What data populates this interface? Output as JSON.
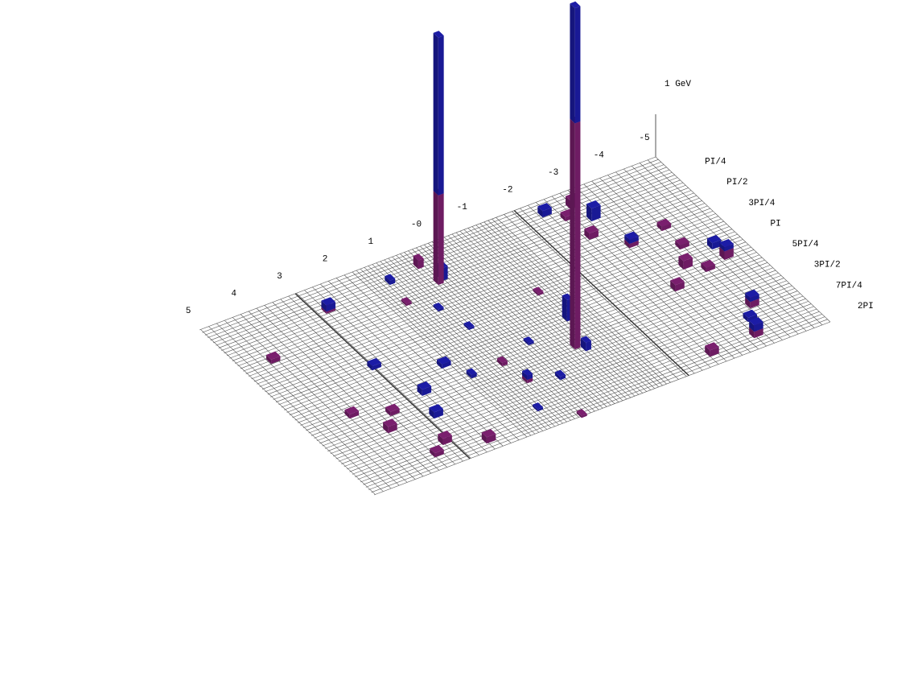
{
  "chart_data": {
    "type": "lego",
    "xlim": [
      -5,
      5
    ],
    "xticks": [
      5,
      4,
      3,
      2,
      1,
      {
        "value": 0,
        "label": "-0"
      },
      -1,
      -2,
      -3,
      -4,
      -5
    ],
    "ylim": [
      0,
      6.283185
    ],
    "yticks": [
      {
        "value": 0.785398,
        "label": "PI/4"
      },
      {
        "value": 1.570796,
        "label": "PI/2"
      },
      {
        "value": 2.356194,
        "label": "3PI/4"
      },
      {
        "value": 3.141593,
        "label": "PI"
      },
      {
        "value": 3.926991,
        "label": "5PI/4"
      },
      {
        "value": 4.712389,
        "label": "3PI/2"
      },
      {
        "value": 5.497787,
        "label": "7PI/4"
      },
      {
        "value": 6.283185,
        "label": "2PI"
      }
    ],
    "zticks": [
      {
        "value": 1,
        "label": "1 GeV"
      }
    ],
    "x": [
      0.46,
      -0.61,
      -3.03,
      -2.33,
      -2.62,
      -2.69,
      -3.18,
      -3.97,
      -3.95,
      -4.45,
      -3.67,
      -3.18,
      -4.47,
      -3.98,
      -4.07,
      -3.81,
      -3.64,
      -2.64,
      2.65,
      4.34,
      2.87,
      4.02,
      3.34,
      2.51,
      2.7,
      3.66,
      3.0,
      3.33,
      2.29,
      1.75,
      1.22,
      1.49,
      0.7,
      0.13,
      0.81,
      -0.92,
      1.0,
      0.42,
      0.9,
      0.73,
      0.05,
      -0.95,
      -0.75,
      0.51,
      0.33,
      1.31,
      -2.9
    ],
    "y": [
      1.15,
      4.31,
      1.0,
      0.39,
      0.73,
      1.48,
      2.12,
      1.99,
      2.68,
      3.01,
      3.26,
      3.77,
      3.42,
      3.56,
      5.0,
      5.35,
      5.85,
      5.9,
      0.78,
      1.57,
      2.79,
      3.87,
      4.22,
      4.0,
      4.74,
      4.66,
      5.55,
      5.8,
      5.96,
      3.46,
      0.65,
      4.03,
      4.74,
      4.99,
      4.02,
      2.47,
      5.61,
      6.24,
      1.87,
      2.69,
      3.72,
      3.47,
      4.47,
      0.51,
      1.08,
      1.39,
      0.46
    ],
    "series": [
      {
        "color": "#7a1f6e",
        "values": [
          2.1,
          5.3,
          0,
          0,
          0.1,
          0.15,
          0.1,
          0.1,
          0.1,
          0,
          0.2,
          0.15,
          0.2,
          0.1,
          0.15,
          0,
          0.15,
          0.15,
          0.05,
          0.1,
          0,
          0.1,
          0.1,
          0,
          0,
          0.15,
          0.15,
          0.1,
          0.15,
          0,
          0,
          0,
          0.08,
          0,
          0.08,
          0.05,
          0,
          0.05,
          0,
          0,
          0,
          0,
          0,
          0.2,
          0,
          0.05,
          0.2
        ]
      },
      {
        "color": "#1c1ca6",
        "values": [
          3.7,
          2.7,
          0.3,
          0.15,
          0,
          0,
          0.1,
          0,
          0,
          0.15,
          0,
          0,
          0.1,
          0,
          0.1,
          0.1,
          0.15,
          0,
          0.15,
          0,
          0.1,
          0,
          0,
          0.15,
          0.15,
          0,
          0,
          0,
          0,
          0.1,
          0.1,
          0.08,
          0.1,
          0.08,
          0,
          0,
          0.05,
          0,
          0.05,
          0.05,
          0.05,
          0.5,
          0.2,
          0,
          0.3,
          0,
          0
        ]
      }
    ]
  }
}
